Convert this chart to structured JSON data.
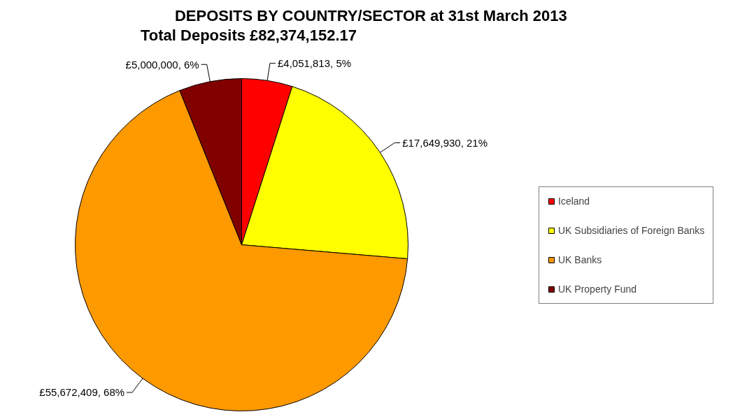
{
  "chart_data": {
    "type": "pie",
    "title": "DEPOSITS BY COUNTRY/SECTOR at 31st March 2013",
    "subtitle": "Total Deposits £82,374,152.17",
    "categories": [
      "Iceland",
      "UK Subsidiaries of Foreign Banks",
      "UK Banks",
      "UK Property Fund"
    ],
    "values": [
      4051813,
      17649930,
      55672409,
      5000000
    ],
    "colors": [
      "#ff0000",
      "#ffff00",
      "#ff9900",
      "#800000"
    ],
    "value_labels": [
      "£4,051,813, 5%",
      "£17,649,930, 21%",
      "£55,672,409, 68%",
      "£5,000,000, 6%"
    ],
    "legend": "right"
  }
}
